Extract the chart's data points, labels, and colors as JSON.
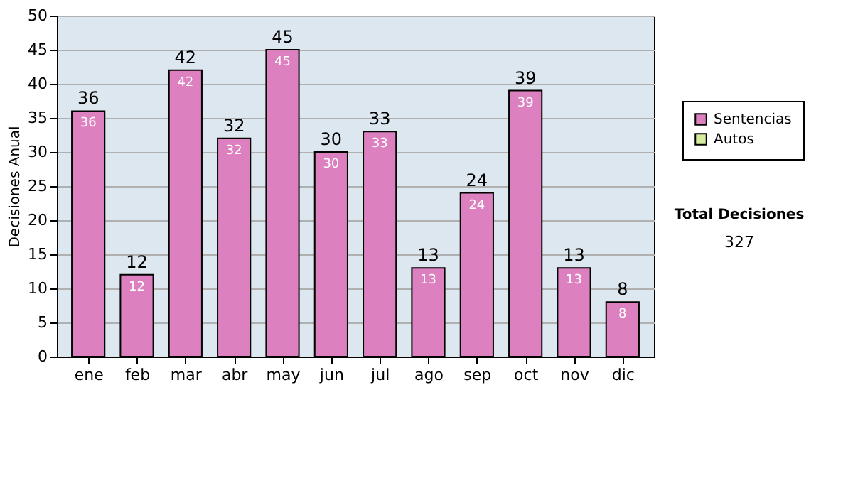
{
  "chart_data": {
    "type": "bar",
    "ylabel": "Decisiones Anual",
    "categories": [
      "ene",
      "feb",
      "mar",
      "abr",
      "may",
      "jun",
      "jul",
      "ago",
      "sep",
      "oct",
      "nov",
      "dic"
    ],
    "series": [
      {
        "name": "Sentencias",
        "color": "#dc80c0",
        "values": [
          36,
          12,
          42,
          32,
          45,
          30,
          33,
          13,
          24,
          39,
          13,
          8
        ]
      },
      {
        "name": "Autos",
        "color": "#d8eca0",
        "values": [
          null,
          null,
          null,
          null,
          null,
          null,
          null,
          null,
          null,
          null,
          null,
          null
        ]
      }
    ],
    "data_labels": true,
    "totals": [
      "36",
      "12",
      "42",
      "32",
      "45",
      "30",
      "33",
      "13",
      "24",
      "39",
      "13",
      "8"
    ],
    "ylim": [
      0,
      50
    ],
    "yticks": [
      0,
      5,
      10,
      15,
      20,
      25,
      30,
      35,
      40,
      45,
      50
    ],
    "grid": "y",
    "legend": "right",
    "annotations": [
      "Total Decisiones",
      "327"
    ]
  }
}
